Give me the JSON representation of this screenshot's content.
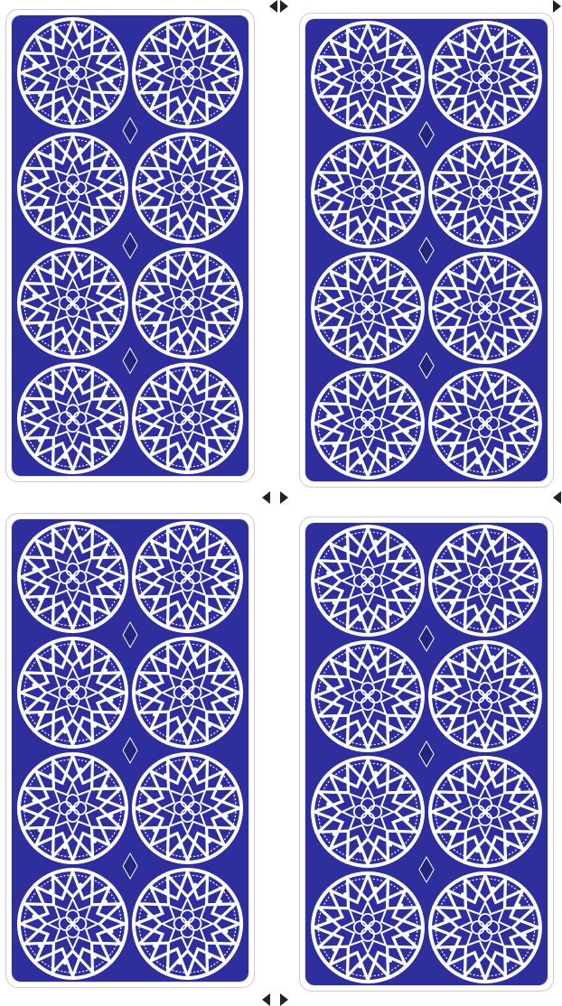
{
  "cards": [
    {
      "id": "card-tl",
      "face": "down",
      "back_design": "blue-geometric-star-rosette"
    },
    {
      "id": "card-tr",
      "face": "down",
      "back_design": "blue-geometric-star-rosette"
    },
    {
      "id": "card-bl",
      "face": "down",
      "back_design": "blue-geometric-star-rosette"
    },
    {
      "id": "card-br",
      "face": "down",
      "back_design": "blue-geometric-star-rosette"
    }
  ],
  "colors": {
    "card_back": "#2e2f9c",
    "card_back_dark": "#23247d",
    "pattern": "#ffffff",
    "card_border": "#ffffff",
    "background": "#ffffff",
    "crop_marks": "#222222"
  },
  "icons": [
    "star-rosette-pattern",
    "crop-mark-triangle"
  ]
}
